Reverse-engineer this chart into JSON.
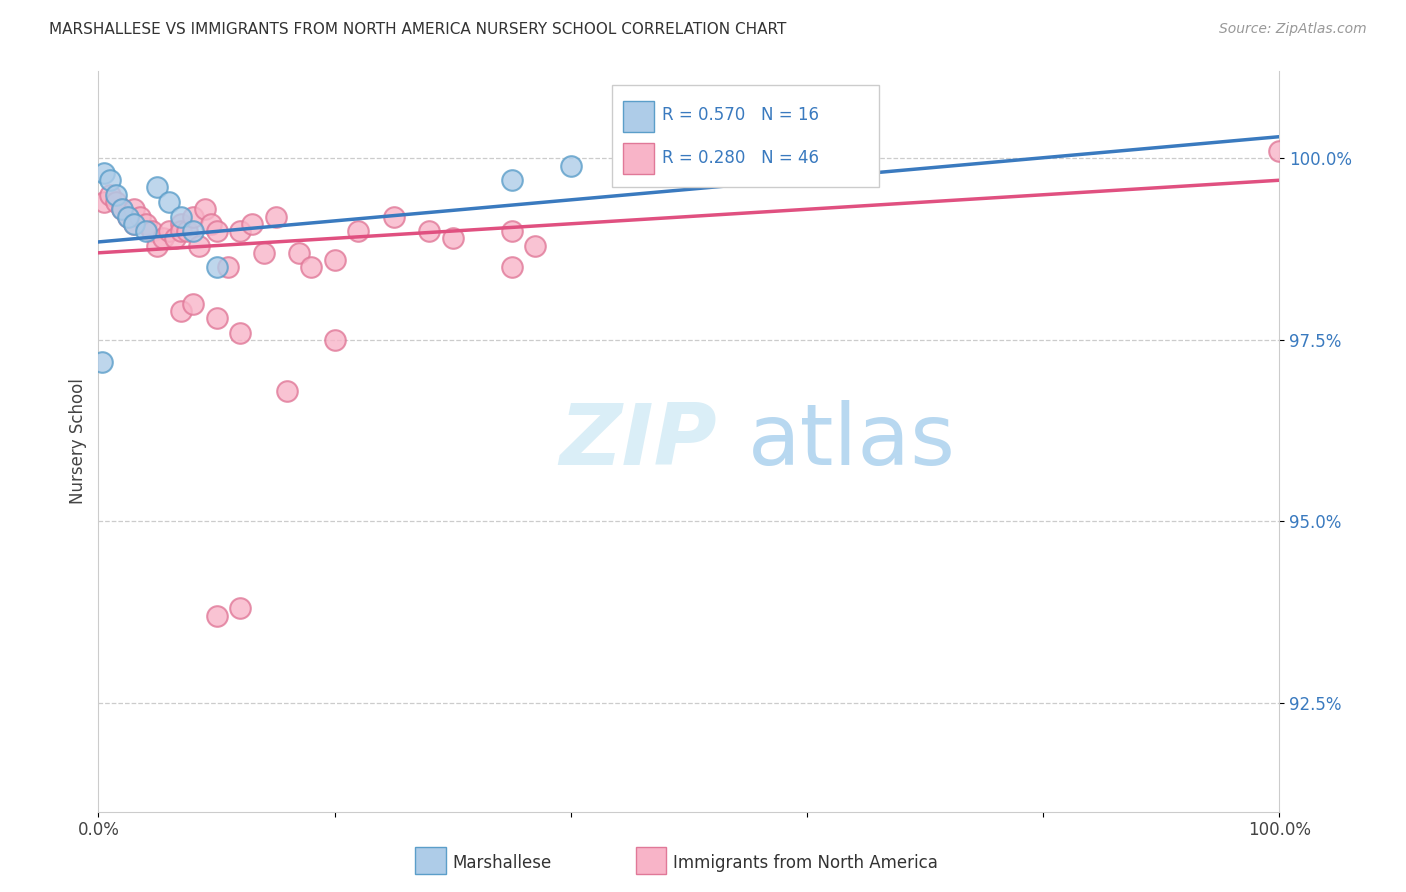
{
  "title": "MARSHALLESE VS IMMIGRANTS FROM NORTH AMERICA NURSERY SCHOOL CORRELATION CHART",
  "source": "Source: ZipAtlas.com",
  "ylabel": "Nursery School",
  "R_marshallese": 0.57,
  "N_marshallese": 16,
  "R_immigrants": 0.28,
  "N_immigrants": 46,
  "blue_line_color": "#3a7abf",
  "pink_line_color": "#e05080",
  "blue_scatter_fill": "#aecce8",
  "blue_scatter_edge": "#5b9ec9",
  "pink_scatter_fill": "#f8b4c8",
  "pink_scatter_edge": "#e07898",
  "marshallese_x": [
    0.5,
    1.0,
    1.5,
    2.0,
    2.5,
    3.0,
    4.0,
    5.0,
    6.0,
    7.0,
    8.0,
    10.0,
    35.0,
    40.0,
    55.0,
    0.3
  ],
  "marshallese_y": [
    99.8,
    99.7,
    99.5,
    99.3,
    99.2,
    99.1,
    99.0,
    99.6,
    99.4,
    99.2,
    99.0,
    98.5,
    99.7,
    99.9,
    100.1,
    97.2
  ],
  "immigrants_x": [
    0.5,
    1.0,
    1.5,
    2.0,
    2.5,
    3.0,
    3.0,
    3.5,
    4.0,
    4.5,
    5.0,
    5.5,
    6.0,
    6.5,
    7.0,
    7.0,
    7.5,
    8.0,
    8.5,
    9.0,
    9.5,
    10.0,
    11.0,
    12.0,
    13.0,
    14.0,
    15.0,
    17.0,
    18.0,
    20.0,
    22.0,
    25.0,
    28.0,
    30.0,
    35.0,
    37.0,
    10.0,
    12.0,
    16.0,
    20.0,
    10.0,
    12.0,
    7.0,
    8.0,
    100.0,
    35.0
  ],
  "immigrants_y": [
    99.4,
    99.5,
    99.4,
    99.3,
    99.2,
    99.1,
    99.3,
    99.2,
    99.1,
    99.0,
    98.8,
    98.9,
    99.0,
    98.9,
    99.1,
    99.0,
    99.0,
    99.2,
    98.8,
    99.3,
    99.1,
    99.0,
    98.5,
    99.0,
    99.1,
    98.7,
    99.2,
    98.7,
    98.5,
    98.6,
    99.0,
    99.2,
    99.0,
    98.9,
    99.0,
    98.8,
    97.8,
    97.6,
    96.8,
    97.5,
    93.7,
    93.8,
    97.9,
    98.0,
    100.1,
    98.5
  ],
  "blue_trendline_x0": 0,
  "blue_trendline_y0": 98.85,
  "blue_trendline_x1": 100,
  "blue_trendline_y1": 100.3,
  "pink_trendline_x0": 0,
  "pink_trendline_y0": 98.7,
  "pink_trendline_x1": 100,
  "pink_trendline_y1": 99.7,
  "xlim": [
    0,
    100
  ],
  "ylim": [
    91.0,
    101.2
  ],
  "yticks": [
    92.5,
    95.0,
    97.5,
    100.0
  ],
  "ytick_labels": [
    "92.5%",
    "95.0%",
    "97.5%",
    "100.0%"
  ],
  "xtick_positions": [
    0,
    20,
    40,
    60,
    80,
    100
  ],
  "xtick_labels": [
    "0.0%",
    "",
    "",
    "",
    "",
    "100.0%"
  ],
  "grid_color": "#cccccc",
  "watermark_zip": "ZIP",
  "watermark_atlas": "atlas",
  "legend_items": [
    {
      "label": "Marshallese"
    },
    {
      "label": "Immigrants from North America"
    }
  ]
}
